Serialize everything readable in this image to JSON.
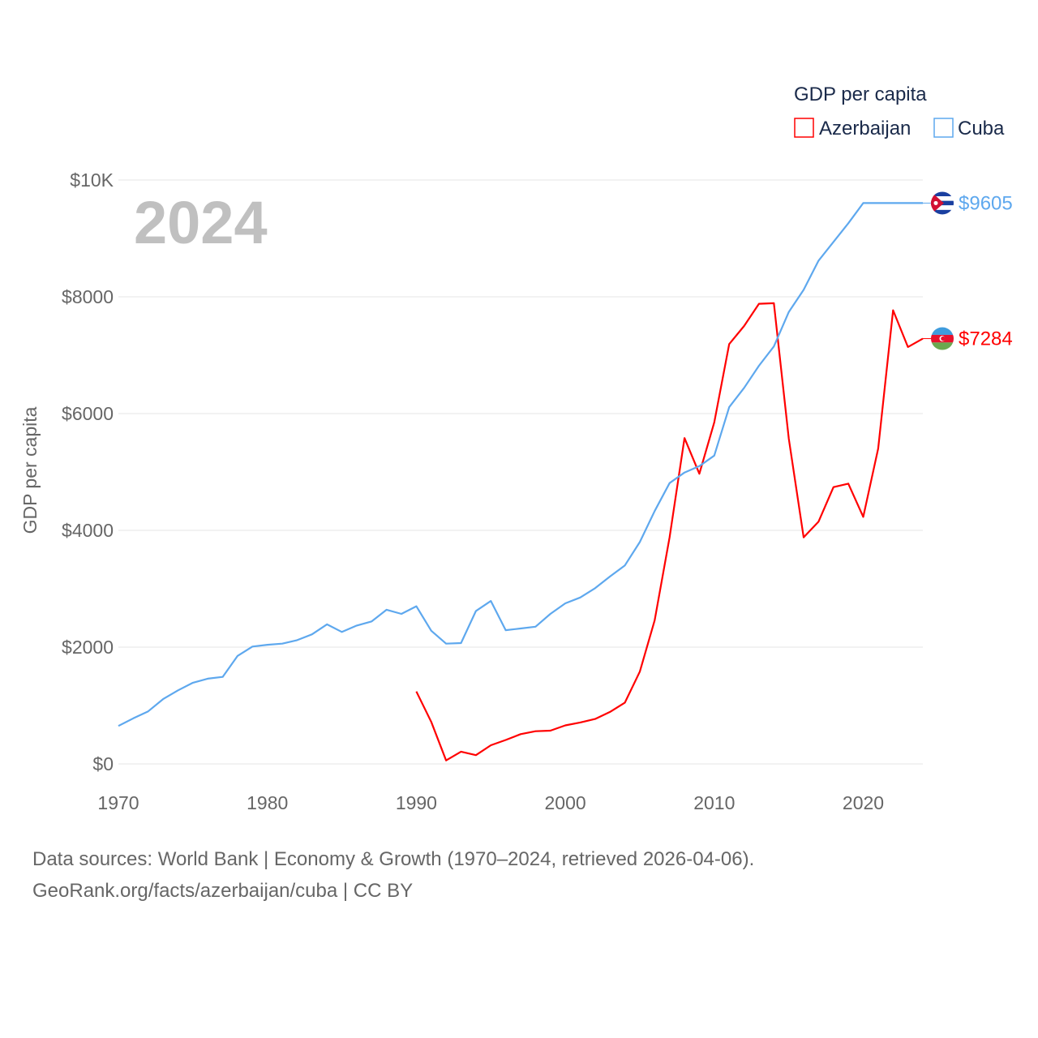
{
  "chart_data": {
    "type": "line",
    "ylabel": "GDP per capita",
    "xlabel": "",
    "year_label": "2024",
    "legend_title": "GDP per capita",
    "legend_position": "top-right",
    "xlim": [
      1970,
      2024
    ],
    "ylim": [
      0,
      10000
    ],
    "x_ticks": [
      1970,
      1980,
      1990,
      2000,
      2010,
      2020
    ],
    "y_ticks": [
      0,
      2000,
      4000,
      6000,
      8000,
      10000
    ],
    "y_tick_labels": [
      "$0",
      "$2000",
      "$4000",
      "$6000",
      "$8000",
      "$10K"
    ],
    "grid": true,
    "series": [
      {
        "name": "Azerbaijan",
        "color": "#ff0000",
        "end_label": "$7284",
        "x": [
          1990,
          1991,
          1992,
          1993,
          1994,
          1995,
          1996,
          1997,
          1998,
          1999,
          2000,
          2001,
          2002,
          2003,
          2004,
          2005,
          2006,
          2007,
          2008,
          2009,
          2010,
          2011,
          2012,
          2013,
          2014,
          2015,
          2016,
          2017,
          2018,
          2019,
          2020,
          2021,
          2022,
          2023,
          2024
        ],
        "values": [
          1240,
          720,
          60,
          210,
          150,
          320,
          410,
          510,
          560,
          570,
          660,
          710,
          770,
          890,
          1050,
          1580,
          2460,
          3880,
          5580,
          4970,
          5850,
          7190,
          7500,
          7880,
          7890,
          5570,
          3880,
          4150,
          4740,
          4800,
          4230,
          5400,
          7770,
          7140,
          7284
        ]
      },
      {
        "name": "Cuba",
        "color": "#5ea8ee",
        "end_label": "$9605",
        "x": [
          1970,
          1971,
          1972,
          1973,
          1974,
          1975,
          1976,
          1977,
          1978,
          1979,
          1980,
          1981,
          1982,
          1983,
          1984,
          1985,
          1986,
          1987,
          1988,
          1989,
          1990,
          1991,
          1992,
          1993,
          1994,
          1995,
          1996,
          1997,
          1998,
          1999,
          2000,
          2001,
          2002,
          2003,
          2004,
          2005,
          2006,
          2007,
          2008,
          2009,
          2010,
          2011,
          2012,
          2013,
          2014,
          2015,
          2016,
          2017,
          2018,
          2019,
          2020,
          2021,
          2022,
          2023,
          2024
        ],
        "values": [
          650,
          780,
          900,
          1110,
          1260,
          1390,
          1460,
          1490,
          1850,
          2010,
          2040,
          2060,
          2120,
          2220,
          2390,
          2260,
          2370,
          2440,
          2640,
          2570,
          2700,
          2280,
          2060,
          2070,
          2620,
          2790,
          2290,
          2320,
          2350,
          2570,
          2750,
          2850,
          3010,
          3210,
          3400,
          3800,
          4330,
          4810,
          4990,
          5100,
          5280,
          6110,
          6440,
          6820,
          7150,
          7740,
          8120,
          8620,
          8940,
          9260,
          9605,
          9605,
          9605,
          9605,
          9605
        ]
      }
    ]
  },
  "footer": {
    "line1": "Data sources: World Bank | Economy & Growth (1970–2024, retrieved 2026-04-06).",
    "line2": "GeoRank.org/facts/azerbaijan/cuba | CC BY"
  }
}
